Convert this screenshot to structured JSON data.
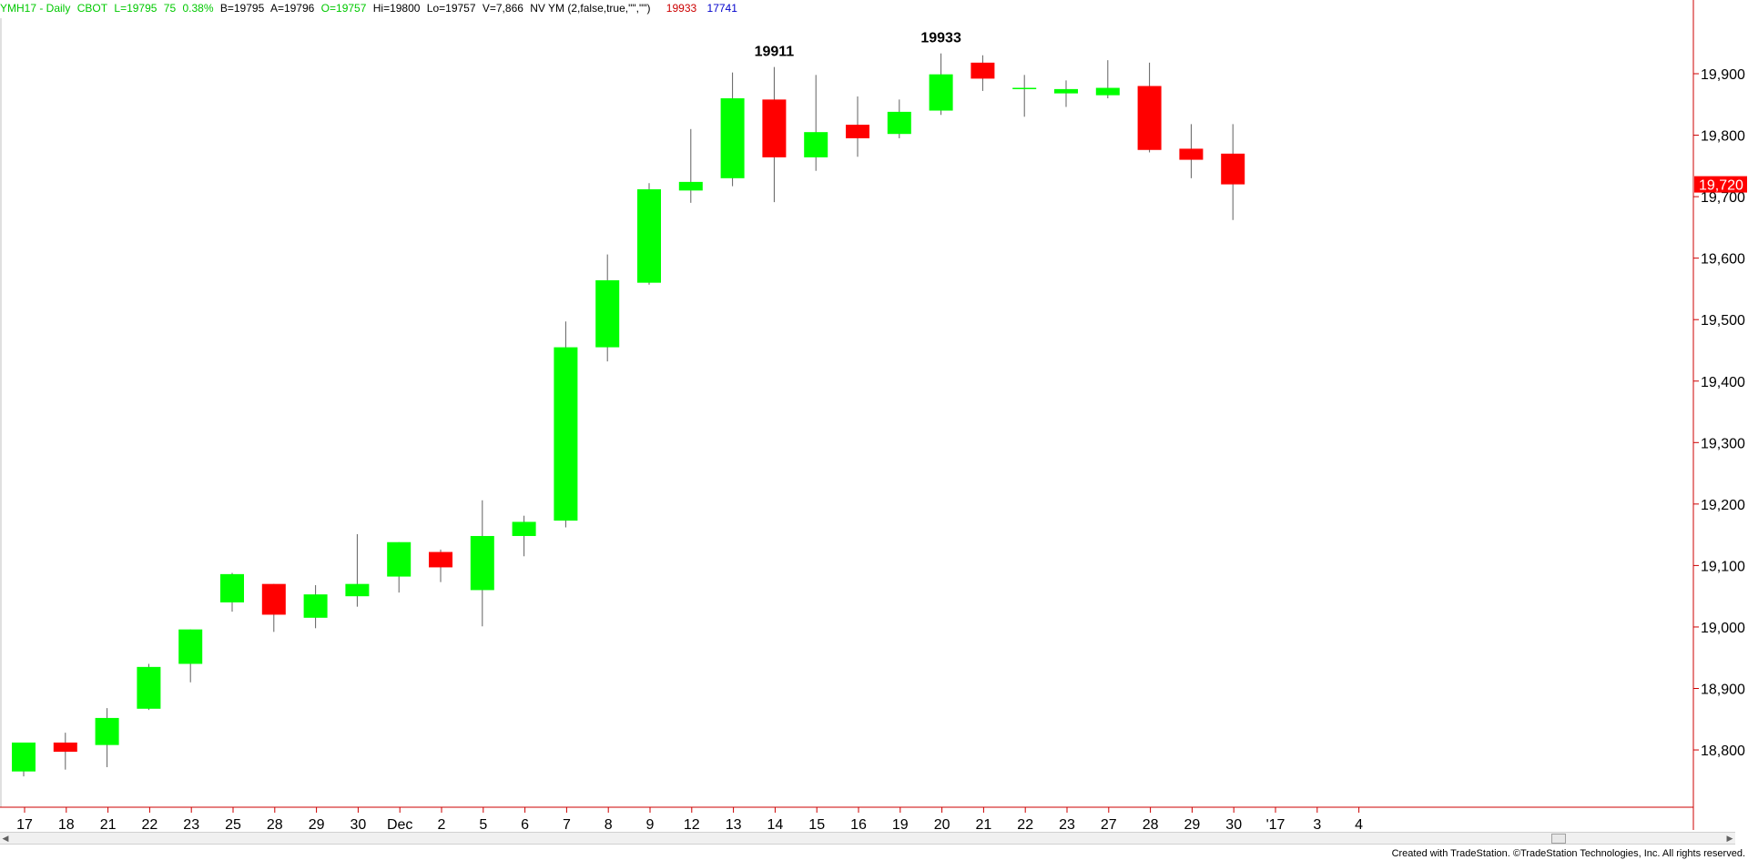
{
  "header": {
    "symbol": "YMH17 - Daily",
    "exchange": "CBOT",
    "last": "L=19795",
    "change": "75",
    "pct": "0.38%",
    "bid": "B=19795",
    "ask": "A=19796",
    "open": "O=19757",
    "high": "Hi=19800",
    "low": "Lo=19757",
    "volume": "V=7,866",
    "study": "NV YM (2,false,true,\"\",\"\")",
    "study_val1": "19933",
    "study_val2": "17741"
  },
  "footer": {
    "credit": "Created with TradeStation. ©TradeStation Technologies, Inc. All rights reserved."
  },
  "colors": {
    "up": "#00ff00",
    "down": "#ff0000",
    "wick": "#606060",
    "axis": "#cc0000",
    "price_tag_bg": "#ff0000"
  },
  "chart_data": {
    "type": "candlestick",
    "ylim": [
      18700,
      20050
    ],
    "y_ticks": [
      18800,
      18900,
      19000,
      19100,
      19200,
      19300,
      19400,
      19500,
      19600,
      19700,
      19800,
      19900
    ],
    "y_tick_labels": [
      "18,800",
      "18,900",
      "19,000",
      "19,100",
      "19,200",
      "19,300",
      "19,400",
      "19,500",
      "19,600",
      "19,700",
      "19,800",
      "19,900"
    ],
    "x_labels": [
      "17",
      "18",
      "21",
      "22",
      "23",
      "25",
      "28",
      "29",
      "30",
      "Dec",
      "2",
      "5",
      "6",
      "7",
      "8",
      "9",
      "12",
      "13",
      "14",
      "15",
      "16",
      "19",
      "20",
      "21",
      "22",
      "23",
      "27",
      "28",
      "29",
      "30",
      "'17",
      "3",
      "4"
    ],
    "last_price_label": "19,720",
    "last_price": 19720,
    "annotations": [
      {
        "text": "19911",
        "bar": 18,
        "price": 19911
      },
      {
        "text": "19933",
        "bar": 22,
        "price": 19933
      }
    ],
    "candles": [
      {
        "o": 18765,
        "h": 18812,
        "l": 18757,
        "c": 18812
      },
      {
        "o": 18812,
        "h": 18828,
        "l": 18768,
        "c": 18797
      },
      {
        "o": 18808,
        "h": 18868,
        "l": 18772,
        "c": 18852
      },
      {
        "o": 18867,
        "h": 18940,
        "l": 18865,
        "c": 18935
      },
      {
        "o": 18940,
        "h": 18996,
        "l": 18910,
        "c": 18996
      },
      {
        "o": 19040,
        "h": 19088,
        "l": 19025,
        "c": 19086
      },
      {
        "o": 19070,
        "h": 19070,
        "l": 18992,
        "c": 19020
      },
      {
        "o": 19015,
        "h": 19068,
        "l": 18998,
        "c": 19053
      },
      {
        "o": 19050,
        "h": 19151,
        "l": 19033,
        "c": 19070
      },
      {
        "o": 19082,
        "h": 19138,
        "l": 19056,
        "c": 19138
      },
      {
        "o": 19122,
        "h": 19126,
        "l": 19073,
        "c": 19097
      },
      {
        "o": 19060,
        "h": 19206,
        "l": 19001,
        "c": 19148
      },
      {
        "o": 19148,
        "h": 19181,
        "l": 19115,
        "c": 19171
      },
      {
        "o": 19173,
        "h": 19497,
        "l": 19162,
        "c": 19455
      },
      {
        "o": 19455,
        "h": 19606,
        "l": 19432,
        "c": 19564
      },
      {
        "o": 19560,
        "h": 19722,
        "l": 19557,
        "c": 19712
      },
      {
        "o": 19710,
        "h": 19810,
        "l": 19690,
        "c": 19724
      },
      {
        "o": 19730,
        "h": 19902,
        "l": 19717,
        "c": 19860
      },
      {
        "o": 19858,
        "h": 19911,
        "l": 19691,
        "c": 19764
      },
      {
        "o": 19764,
        "h": 19898,
        "l": 19742,
        "c": 19805
      },
      {
        "o": 19817,
        "h": 19863,
        "l": 19765,
        "c": 19795
      },
      {
        "o": 19802,
        "h": 19858,
        "l": 19795,
        "c": 19838
      },
      {
        "o": 19840,
        "h": 19933,
        "l": 19833,
        "c": 19899
      },
      {
        "o": 19918,
        "h": 19930,
        "l": 19872,
        "c": 19892
      },
      {
        "o": 19876,
        "h": 19898,
        "l": 19830,
        "c": 19876
      },
      {
        "o": 19868,
        "h": 19889,
        "l": 19846,
        "c": 19875
      },
      {
        "o": 19865,
        "h": 19922,
        "l": 19860,
        "c": 19877
      },
      {
        "o": 19880,
        "h": 19918,
        "l": 19772,
        "c": 19776
      },
      {
        "o": 19778,
        "h": 19818,
        "l": 19730,
        "c": 19760
      },
      {
        "o": 19770,
        "h": 19818,
        "l": 19662,
        "c": 19720
      }
    ]
  }
}
